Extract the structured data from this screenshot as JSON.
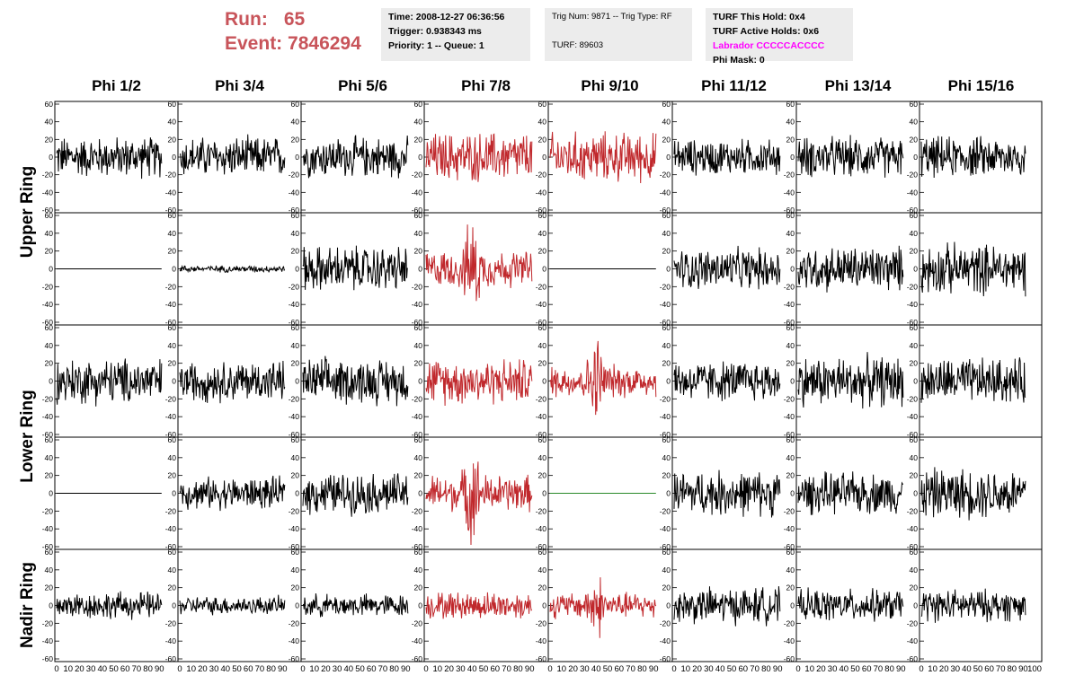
{
  "run_info": {
    "run_label": "Run:",
    "run_value": "65",
    "event_label": "Event:",
    "event_value": "7846294"
  },
  "time_box": {
    "time": "Time: 2008-12-27 06:36:56",
    "trigger": "Trigger: 0.938343 ms",
    "priority": "Priority: 1 -- Queue: 1"
  },
  "trig_box": {
    "trig": "Trig Num: 9871 -- Trig Type: RF",
    "turf": "TURF: 89603"
  },
  "turf_box": {
    "this_hold": "TURF This Hold: 0x4",
    "active_holds": "TURF Active Holds: 0x6",
    "labrador": "Labrador CCCCCACCCC",
    "phi_mask": "Phi Mask: 0"
  },
  "colors": {
    "accent_red": "#c8545a",
    "trigger_red": "#c0282c",
    "green": "#2a8a2a",
    "labrador": "#ff00ff",
    "trace": "#000000"
  },
  "chart_data": {
    "type": "line",
    "columns": [
      "Phi 1/2",
      "Phi 3/4",
      "Phi 5/6",
      "Phi 7/8",
      "Phi 9/10",
      "Phi 11/12",
      "Phi 13/14",
      "Phi 15/16"
    ],
    "rows": [
      "Upper Ring",
      "Lower Ring",
      "Nadir Ring"
    ],
    "ylim": [
      -60,
      60
    ],
    "xlim": [
      0,
      100
    ],
    "y_ticks": [
      60,
      40,
      20,
      0,
      -20,
      -40,
      -60
    ],
    "x_tick_labels": [
      "0",
      "10",
      "20",
      "30",
      "40",
      "50",
      "60",
      "70",
      "80",
      "90",
      "100"
    ],
    "panels": [
      [
        {
          "mode": "noise",
          "amp": 18,
          "color": "black"
        },
        {
          "mode": "noise",
          "amp": 18,
          "color": "black"
        },
        {
          "mode": "noise",
          "amp": 18,
          "color": "black"
        },
        {
          "mode": "noise",
          "amp": 22,
          "color": "red"
        },
        {
          "mode": "noise",
          "amp": 22,
          "color": "red"
        },
        {
          "mode": "noise",
          "amp": 16,
          "color": "black"
        },
        {
          "mode": "noise",
          "amp": 18,
          "color": "black"
        },
        {
          "mode": "noise",
          "amp": 18,
          "color": "black"
        }
      ],
      [
        {
          "mode": "flat",
          "amp": 0,
          "color": "black"
        },
        {
          "mode": "noise",
          "amp": 3,
          "color": "black"
        },
        {
          "mode": "noise",
          "amp": 20,
          "color": "black"
        },
        {
          "mode": "pulse",
          "amp": 20,
          "color": "red"
        },
        {
          "mode": "flat",
          "amp": 0,
          "color": "black"
        },
        {
          "mode": "noise",
          "amp": 18,
          "color": "black"
        },
        {
          "mode": "noise",
          "amp": 20,
          "color": "black"
        },
        {
          "mode": "noise",
          "amp": 22,
          "color": "black"
        }
      ],
      [
        {
          "mode": "noise",
          "amp": 20,
          "color": "black"
        },
        {
          "mode": "noise",
          "amp": 18,
          "color": "black"
        },
        {
          "mode": "noise",
          "amp": 20,
          "color": "black"
        },
        {
          "mode": "noise",
          "amp": 20,
          "color": "red"
        },
        {
          "mode": "pulse",
          "amp": 18,
          "color": "red"
        },
        {
          "mode": "noise",
          "amp": 18,
          "color": "black"
        },
        {
          "mode": "noise",
          "amp": 22,
          "color": "black"
        },
        {
          "mode": "noise",
          "amp": 20,
          "color": "black"
        }
      ],
      [
        {
          "mode": "flat",
          "amp": 0,
          "color": "black"
        },
        {
          "mode": "noise",
          "amp": 14,
          "color": "black"
        },
        {
          "mode": "noise",
          "amp": 18,
          "color": "black"
        },
        {
          "mode": "pulse",
          "amp": 20,
          "color": "red"
        },
        {
          "mode": "flat",
          "amp": 0,
          "color": "green"
        },
        {
          "mode": "noise",
          "amp": 20,
          "color": "black"
        },
        {
          "mode": "noise",
          "amp": 18,
          "color": "black"
        },
        {
          "mode": "noise",
          "amp": 22,
          "color": "black"
        }
      ],
      [
        {
          "mode": "noise",
          "amp": 12,
          "color": "black"
        },
        {
          "mode": "noise",
          "amp": 8,
          "color": "black"
        },
        {
          "mode": "noise",
          "amp": 10,
          "color": "black"
        },
        {
          "mode": "noise",
          "amp": 12,
          "color": "red"
        },
        {
          "mode": "pulse",
          "amp": 14,
          "color": "red"
        },
        {
          "mode": "noise",
          "amp": 16,
          "color": "black"
        },
        {
          "mode": "noise",
          "amp": 14,
          "color": "black"
        },
        {
          "mode": "noise",
          "amp": 14,
          "color": "black"
        }
      ]
    ]
  }
}
